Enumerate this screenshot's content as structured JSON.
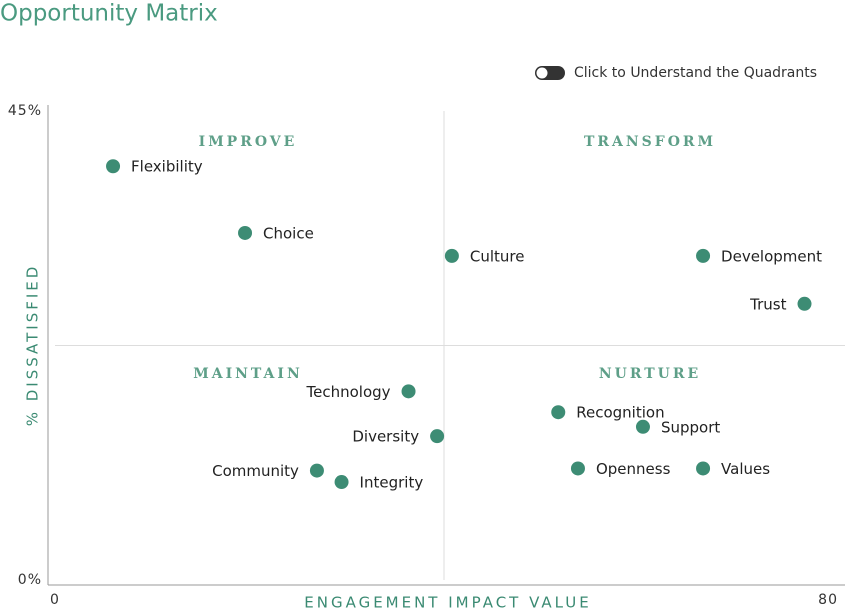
{
  "chart_data": {
    "type": "scatter",
    "title": "Opportunity Matrix",
    "toggle_label": "Click to Understand the Quadrants",
    "xlabel": "ENGAGEMENT IMPACT VALUE",
    "ylabel": "% DISSATISFIED",
    "xlim": [
      0,
      80
    ],
    "xticks": [
      0,
      80
    ],
    "ylim": [
      0,
      45
    ],
    "yticks": [
      {
        "value": 0,
        "label": "0%"
      },
      {
        "value": 45,
        "label": "45%"
      }
    ],
    "quadrants": [
      "IMPROVE",
      "TRANSFORM",
      "MAINTAIN",
      "NURTURE"
    ],
    "color": "#3d8c74",
    "labels": [
      "Flexibility",
      "Choice",
      "Culture",
      "Development",
      "Trust",
      "Technology",
      "Diversity",
      "Community",
      "Integrity",
      "Recognition",
      "Support",
      "Openness",
      "Values"
    ],
    "x": [
      6.4,
      19.8,
      40.8,
      66.3,
      76.6,
      36.4,
      39.3,
      27.1,
      29.6,
      51.6,
      60.2,
      53.6,
      66.3
    ],
    "y": [
      39.7,
      33.3,
      31.1,
      31.1,
      26.5,
      18.1,
      13.8,
      10.5,
      9.4,
      16.1,
      14.7,
      10.7,
      10.7
    ]
  }
}
